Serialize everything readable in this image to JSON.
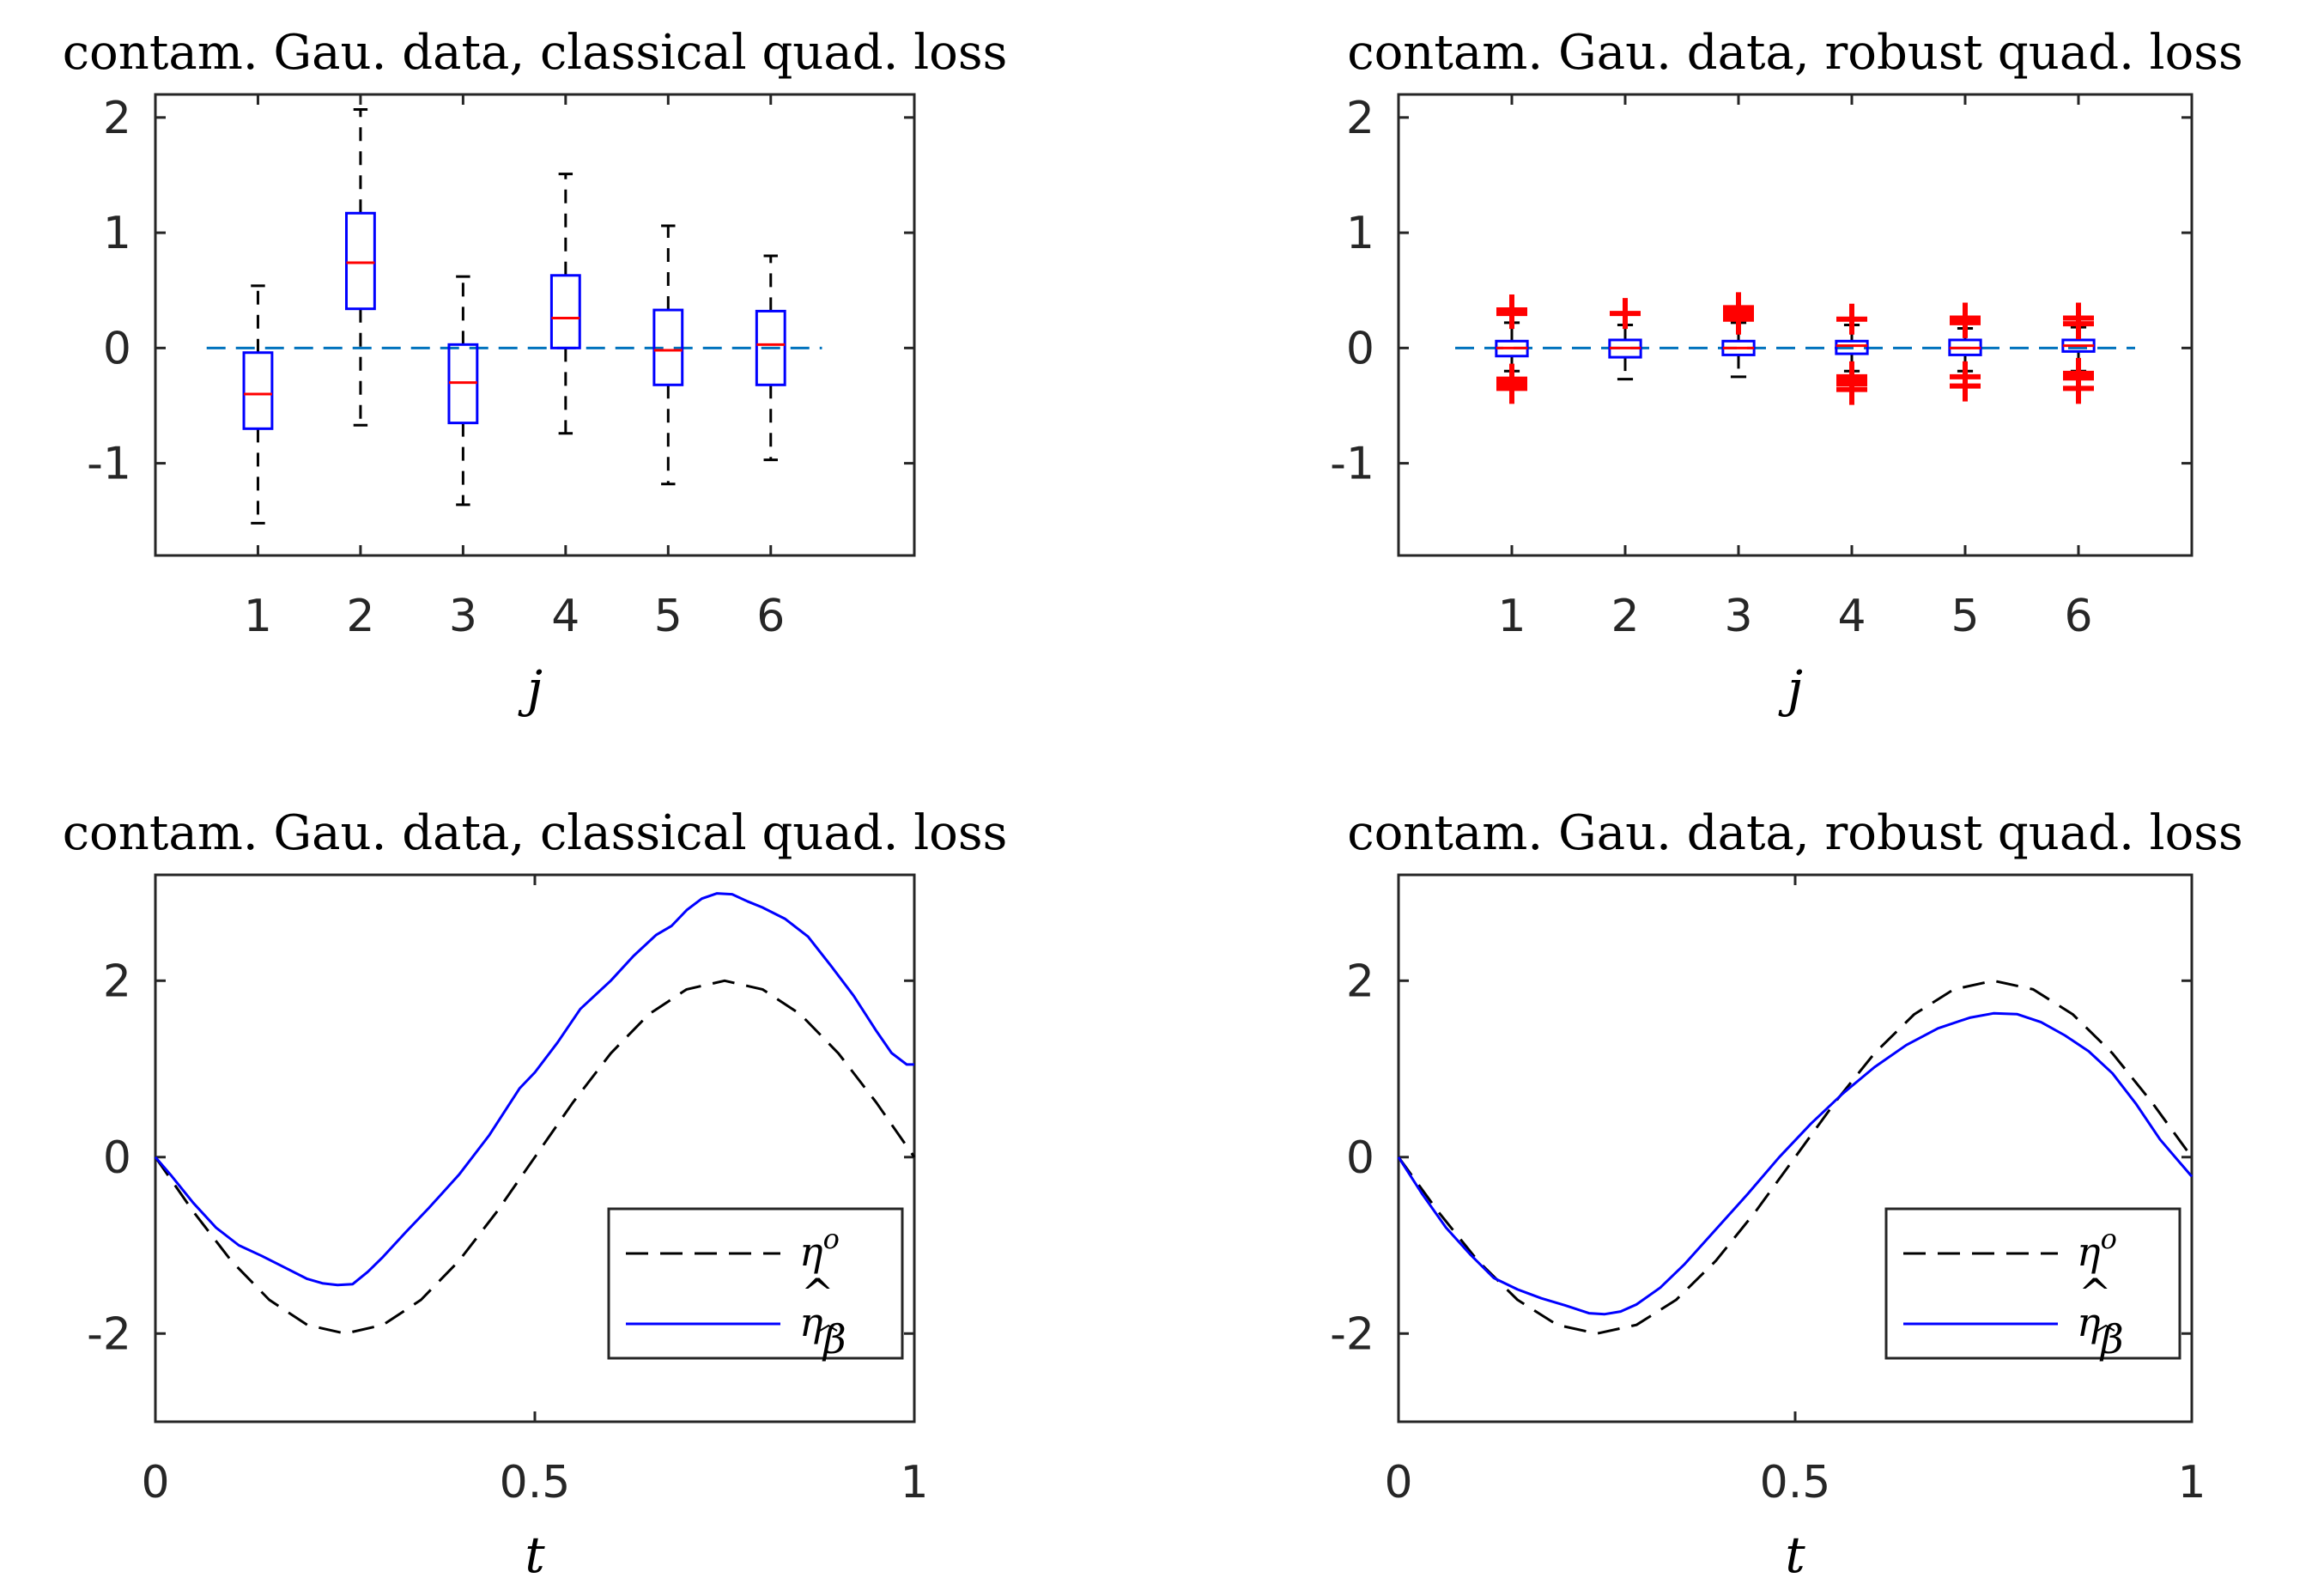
{
  "chart_data": [
    {
      "type": "boxplot",
      "title": "contam. Gau. data, classical quad. loss",
      "xlabel": "j",
      "ylabel": "",
      "xlim": [
        0,
        7.4
      ],
      "ylim": [
        -1.8,
        2.2
      ],
      "xticks": [
        1,
        2,
        3,
        4,
        5,
        6
      ],
      "xtick_labels": [
        "1",
        "2",
        "3",
        "4",
        "5",
        "6"
      ],
      "yticks": [
        -1,
        0,
        1,
        2
      ],
      "ytick_labels": [
        "-1",
        "0",
        "1",
        "2"
      ],
      "reference_line": 0,
      "boxes": [
        {
          "label": "1",
          "whislo": -1.52,
          "q1": -0.7,
          "med": -0.4,
          "q3": -0.04,
          "whishi": 0.54,
          "fliers": []
        },
        {
          "label": "2",
          "whislo": -0.67,
          "q1": 0.34,
          "med": 0.74,
          "q3": 1.17,
          "whishi": 2.07,
          "fliers": []
        },
        {
          "label": "3",
          "whislo": -1.36,
          "q1": -0.65,
          "med": -0.3,
          "q3": 0.03,
          "whishi": 0.62,
          "fliers": []
        },
        {
          "label": "4",
          "whislo": -0.74,
          "q1": 0.0,
          "med": 0.26,
          "q3": 0.63,
          "whishi": 1.51,
          "fliers": []
        },
        {
          "label": "5",
          "whislo": -1.18,
          "q1": -0.32,
          "med": -0.02,
          "q3": 0.33,
          "whishi": 1.06,
          "fliers": []
        },
        {
          "label": "6",
          "whislo": -0.97,
          "q1": -0.32,
          "med": 0.03,
          "q3": 0.32,
          "whishi": 0.8,
          "fliers": []
        }
      ]
    },
    {
      "type": "boxplot",
      "title": "contam. Gau. data, robust quad. loss",
      "xlabel": "j",
      "ylabel": "",
      "xlim": [
        0,
        7
      ],
      "ylim": [
        -1.8,
        2.2
      ],
      "xticks": [
        1,
        2,
        3,
        4,
        5,
        6
      ],
      "xtick_labels": [
        "1",
        "2",
        "3",
        "4",
        "5",
        "6"
      ],
      "yticks": [
        -1,
        0,
        1,
        2
      ],
      "ytick_labels": [
        "-1",
        "0",
        "1",
        "2"
      ],
      "reference_line": 0,
      "boxes": [
        {
          "label": "1",
          "whislo": -0.2,
          "q1": -0.07,
          "med": 0.0,
          "q3": 0.06,
          "whishi": 0.22,
          "fliers": [
            0.3,
            0.33,
            -0.27,
            -0.31,
            -0.35
          ]
        },
        {
          "label": "2",
          "whislo": -0.27,
          "q1": -0.08,
          "med": 0.0,
          "q3": 0.07,
          "whishi": 0.2,
          "fliers": [
            0.3
          ]
        },
        {
          "label": "3",
          "whislo": -0.25,
          "q1": -0.06,
          "med": 0.0,
          "q3": 0.06,
          "whishi": 0.22,
          "fliers": [
            0.25,
            0.28,
            0.31,
            0.35
          ]
        },
        {
          "label": "4",
          "whislo": -0.2,
          "q1": -0.05,
          "med": 0.02,
          "q3": 0.06,
          "whishi": 0.2,
          "fliers": [
            0.25,
            -0.25,
            -0.28,
            -0.31,
            -0.36
          ]
        },
        {
          "label": "5",
          "whislo": -0.2,
          "q1": -0.06,
          "med": 0.0,
          "q3": 0.07,
          "whishi": 0.17,
          "fliers": [
            0.22,
            0.26,
            -0.25,
            -0.33
          ]
        },
        {
          "label": "6",
          "whislo": -0.2,
          "q1": -0.03,
          "med": 0.02,
          "q3": 0.07,
          "whishi": 0.18,
          "fliers": [
            0.21,
            0.26,
            -0.22,
            -0.26,
            -0.35
          ]
        }
      ]
    },
    {
      "type": "line",
      "title": "contam. Gau. data, classical quad. loss",
      "xlabel": "t",
      "ylabel": "",
      "xlim": [
        0,
        1
      ],
      "ylim": [
        -3,
        3.2
      ],
      "xticks": [
        0,
        0.5,
        1
      ],
      "xtick_labels": [
        "0",
        "0.5",
        "1"
      ],
      "yticks": [
        -2,
        0,
        2
      ],
      "ytick_labels": [
        "-2",
        "0",
        "2"
      ],
      "legend_position": "bottom-right",
      "series": [
        {
          "name": "eta_true",
          "label_base": "η",
          "label_sup": "o",
          "style": "dashed",
          "color": "#000000",
          "x": [
            0,
            0.05,
            0.1,
            0.15,
            0.2,
            0.25,
            0.3,
            0.35,
            0.4,
            0.45,
            0.5,
            0.55,
            0.6,
            0.65,
            0.7,
            0.75,
            0.8,
            0.85,
            0.9,
            0.95,
            1.0
          ],
          "y": [
            0.0,
            -0.618,
            -1.176,
            -1.618,
            -1.902,
            -2.0,
            -1.902,
            -1.618,
            -1.176,
            -0.618,
            0.0,
            0.618,
            1.176,
            1.618,
            1.902,
            2.0,
            1.902,
            1.618,
            1.176,
            0.618,
            0.0
          ]
        },
        {
          "name": "eta_hat",
          "label_base": "η",
          "label_hat": "^",
          "label_sub": "β",
          "style": "solid",
          "color": "#0000ff",
          "x": [
            0,
            0.02,
            0.05,
            0.08,
            0.11,
            0.14,
            0.17,
            0.2,
            0.22,
            0.24,
            0.26,
            0.28,
            0.3,
            0.33,
            0.36,
            0.4,
            0.44,
            0.48,
            0.5,
            0.53,
            0.56,
            0.6,
            0.63,
            0.66,
            0.68,
            0.7,
            0.72,
            0.74,
            0.76,
            0.78,
            0.8,
            0.83,
            0.86,
            0.89,
            0.92,
            0.95,
            0.97,
            0.99,
            1.0
          ],
          "y": [
            0.0,
            -0.2,
            -0.52,
            -0.8,
            -1.0,
            -1.12,
            -1.25,
            -1.38,
            -1.43,
            -1.45,
            -1.44,
            -1.3,
            -1.13,
            -0.85,
            -0.58,
            -0.2,
            0.25,
            0.78,
            0.96,
            1.3,
            1.68,
            2.0,
            2.28,
            2.52,
            2.62,
            2.8,
            2.93,
            2.99,
            2.98,
            2.9,
            2.83,
            2.7,
            2.5,
            2.17,
            1.83,
            1.43,
            1.18,
            1.05,
            1.05
          ]
        }
      ]
    },
    {
      "type": "line",
      "title": "contam. Gau. data, robust quad. loss",
      "xlabel": "t",
      "ylabel": "",
      "xlim": [
        0,
        1
      ],
      "ylim": [
        -3,
        3.2
      ],
      "xticks": [
        0,
        0.5,
        1
      ],
      "xtick_labels": [
        "0",
        "0.5",
        "1"
      ],
      "yticks": [
        -2,
        0,
        2
      ],
      "ytick_labels": [
        "-2",
        "0",
        "2"
      ],
      "legend_position": "bottom-right",
      "series": [
        {
          "name": "eta_true",
          "label_base": "η",
          "label_sup": "o",
          "style": "dashed",
          "color": "#000000",
          "x": [
            0,
            0.05,
            0.1,
            0.15,
            0.2,
            0.25,
            0.3,
            0.35,
            0.4,
            0.45,
            0.5,
            0.55,
            0.6,
            0.65,
            0.7,
            0.75,
            0.8,
            0.85,
            0.9,
            0.95,
            1.0
          ],
          "y": [
            0.0,
            -0.618,
            -1.176,
            -1.618,
            -1.902,
            -2.0,
            -1.902,
            -1.618,
            -1.176,
            -0.618,
            0.0,
            0.618,
            1.176,
            1.618,
            1.902,
            2.0,
            1.902,
            1.618,
            1.176,
            0.618,
            0.0
          ]
        },
        {
          "name": "eta_hat",
          "label_base": "η",
          "label_hat": "^",
          "label_sub": "β",
          "style": "solid",
          "color": "#0000ff",
          "x": [
            0,
            0.03,
            0.06,
            0.09,
            0.12,
            0.15,
            0.18,
            0.21,
            0.24,
            0.26,
            0.28,
            0.3,
            0.33,
            0.36,
            0.4,
            0.44,
            0.48,
            0.52,
            0.56,
            0.6,
            0.64,
            0.68,
            0.72,
            0.75,
            0.78,
            0.81,
            0.84,
            0.87,
            0.9,
            0.93,
            0.96,
            1.0
          ],
          "y": [
            0.0,
            -0.42,
            -0.8,
            -1.1,
            -1.37,
            -1.5,
            -1.6,
            -1.68,
            -1.77,
            -1.78,
            -1.75,
            -1.67,
            -1.48,
            -1.22,
            -0.82,
            -0.42,
            0.0,
            0.38,
            0.72,
            1.02,
            1.27,
            1.46,
            1.58,
            1.63,
            1.62,
            1.53,
            1.38,
            1.2,
            0.95,
            0.6,
            0.2,
            -0.22
          ]
        }
      ]
    }
  ]
}
